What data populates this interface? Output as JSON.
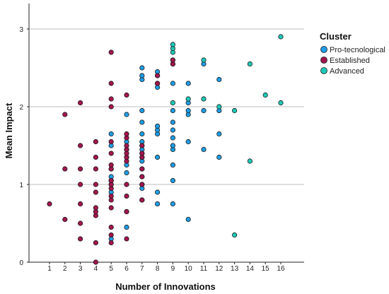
{
  "chart_data": {
    "type": "scatter",
    "xlabel": "Number of Innovations",
    "ylabel": "Mean Impact",
    "xlim": [
      0,
      17
    ],
    "ylim": [
      0,
      3.25
    ],
    "x_ticks": [
      "1",
      "2",
      "3",
      "4",
      "5",
      "6",
      "7",
      "8",
      "9",
      "10",
      "11",
      "12",
      "13",
      "14",
      "15",
      "16"
    ],
    "y_ticks": [
      "0",
      "1",
      "2",
      "3"
    ],
    "grid": "horizontal",
    "legend": {
      "title": "Cluster",
      "placement": "right"
    },
    "series": [
      {
        "name": "Pro-tecnological",
        "color": "#1f9de6",
        "points": [
          [
            5,
            0.3
          ],
          [
            5,
            0.9
          ],
          [
            5,
            1.0
          ],
          [
            5,
            1.05
          ],
          [
            5,
            1.1
          ],
          [
            5,
            1.2
          ],
          [
            5,
            1.5
          ],
          [
            5,
            1.65
          ],
          [
            6,
            0.45
          ],
          [
            6,
            0.65
          ],
          [
            6,
            1.15
          ],
          [
            6,
            1.25
          ],
          [
            6,
            1.35
          ],
          [
            6,
            1.45
          ],
          [
            6,
            1.55
          ],
          [
            6,
            1.9
          ],
          [
            7,
            0.8
          ],
          [
            7,
            0.95
          ],
          [
            7,
            1.0
          ],
          [
            7,
            1.1
          ],
          [
            7,
            1.2
          ],
          [
            7,
            1.3
          ],
          [
            7,
            1.35
          ],
          [
            7,
            1.4
          ],
          [
            7,
            1.45
          ],
          [
            7,
            1.5
          ],
          [
            7,
            1.55
          ],
          [
            7,
            1.65
          ],
          [
            7,
            1.8
          ],
          [
            7,
            1.95
          ],
          [
            7,
            2.35
          ],
          [
            7,
            2.4
          ],
          [
            7,
            2.5
          ],
          [
            8,
            0.75
          ],
          [
            8,
            0.9
          ],
          [
            8,
            1.35
          ],
          [
            8,
            1.65
          ],
          [
            8,
            1.7
          ],
          [
            8,
            1.75
          ],
          [
            8,
            2.25
          ],
          [
            8,
            2.3
          ],
          [
            8,
            2.4
          ],
          [
            8,
            2.45
          ],
          [
            9,
            0.75
          ],
          [
            9,
            1.05
          ],
          [
            9,
            1.25
          ],
          [
            9,
            1.45
          ],
          [
            9,
            1.5
          ],
          [
            9,
            1.6
          ],
          [
            9,
            1.7
          ],
          [
            9,
            1.8
          ],
          [
            9,
            1.95
          ],
          [
            9,
            2.3
          ],
          [
            9,
            2.55
          ],
          [
            9,
            2.6
          ],
          [
            10,
            0.55
          ],
          [
            10,
            1.55
          ],
          [
            10,
            1.9
          ],
          [
            10,
            1.95
          ],
          [
            10,
            2.05
          ],
          [
            10,
            2.3
          ],
          [
            11,
            1.45
          ],
          [
            11,
            1.95
          ],
          [
            11,
            2.55
          ],
          [
            12,
            1.35
          ],
          [
            12,
            1.65
          ],
          [
            12,
            1.95
          ],
          [
            12,
            2.35
          ]
        ]
      },
      {
        "name": "Established",
        "color": "#a3154d",
        "points": [
          [
            1,
            0.75
          ],
          [
            2,
            0.55
          ],
          [
            2,
            1.2
          ],
          [
            2,
            1.9
          ],
          [
            3,
            0.3
          ],
          [
            3,
            0.5
          ],
          [
            3,
            0.75
          ],
          [
            3,
            1.0
          ],
          [
            3,
            1.2
          ],
          [
            3,
            1.5
          ],
          [
            3,
            2.05
          ],
          [
            4,
            0.0
          ],
          [
            4,
            0.25
          ],
          [
            4,
            0.6
          ],
          [
            4,
            0.65
          ],
          [
            4,
            0.7
          ],
          [
            4,
            0.9
          ],
          [
            4,
            1.0
          ],
          [
            4,
            1.2
          ],
          [
            4,
            1.35
          ],
          [
            4,
            1.55
          ],
          [
            5,
            0.25
          ],
          [
            5,
            0.35
          ],
          [
            5,
            0.45
          ],
          [
            5,
            0.7
          ],
          [
            5,
            0.8
          ],
          [
            5,
            0.85
          ],
          [
            5,
            0.95
          ],
          [
            5,
            1.0
          ],
          [
            5,
            1.05
          ],
          [
            5,
            1.2
          ],
          [
            5,
            1.25
          ],
          [
            5,
            1.4
          ],
          [
            5,
            1.55
          ],
          [
            5,
            2.0
          ],
          [
            5,
            2.1
          ],
          [
            5,
            2.3
          ],
          [
            5,
            2.7
          ],
          [
            6,
            0.3
          ],
          [
            6,
            0.65
          ],
          [
            6,
            0.85
          ],
          [
            6,
            1.0
          ],
          [
            6,
            1.3
          ],
          [
            6,
            1.35
          ],
          [
            6,
            1.4
          ],
          [
            6,
            1.45
          ],
          [
            6,
            1.5
          ],
          [
            6,
            1.6
          ],
          [
            6,
            1.65
          ],
          [
            6,
            2.15
          ],
          [
            7,
            0.8
          ],
          [
            7,
            1.0
          ],
          [
            7,
            1.1
          ],
          [
            7,
            1.2
          ],
          [
            7,
            1.35
          ],
          [
            7,
            1.4
          ],
          [
            7,
            1.5
          ],
          [
            8,
            2.3
          ],
          [
            8,
            2.4
          ],
          [
            9,
            2.55
          ],
          [
            9,
            2.6
          ]
        ]
      },
      {
        "name": "Advanced",
        "color": "#1fc9b8",
        "points": [
          [
            9,
            2.05
          ],
          [
            9,
            2.7
          ],
          [
            9,
            2.75
          ],
          [
            9,
            2.8
          ],
          [
            10,
            2.1
          ],
          [
            11,
            2.1
          ],
          [
            11,
            2.6
          ],
          [
            12,
            2.0
          ],
          [
            13,
            0.35
          ],
          [
            13,
            1.95
          ],
          [
            14,
            1.3
          ],
          [
            14,
            2.55
          ],
          [
            15,
            2.15
          ],
          [
            16,
            2.05
          ],
          [
            16,
            2.9
          ]
        ]
      }
    ]
  }
}
